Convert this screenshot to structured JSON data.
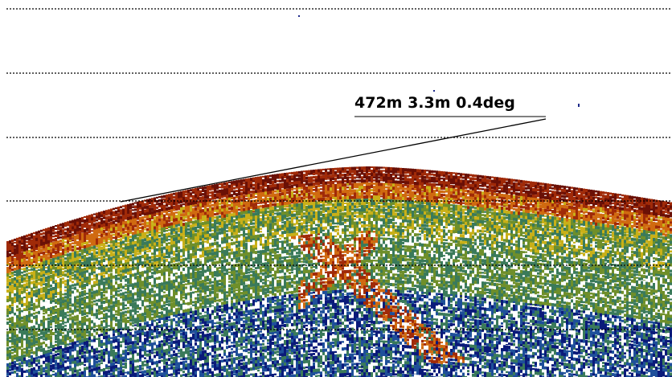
{
  "echogram": {
    "background_color": "#ffffff",
    "depth_line_color": "#000000",
    "depth_line_style": "dotted",
    "depth_line_count": 6,
    "color_scale": [
      "#0a1a7a",
      "#1e4f9a",
      "#3a7a5a",
      "#6f8f2a",
      "#c9b018",
      "#d06a10",
      "#a02a08",
      "#6a1006"
    ],
    "noise_color": "#ffffff"
  },
  "measurement": {
    "label": "472m 3.3m 0.4deg",
    "line_color": "#000000"
  }
}
